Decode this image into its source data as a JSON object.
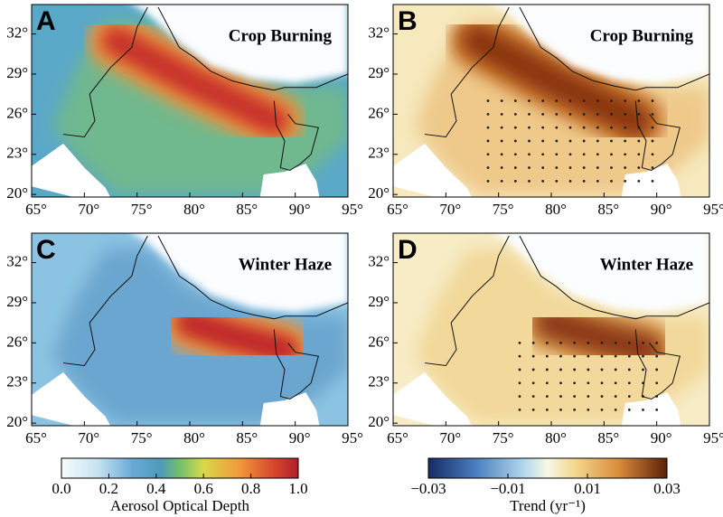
{
  "panels": [
    {
      "letter": "A",
      "title": "Crop Burning"
    },
    {
      "letter": "B",
      "title": "Crop Burning"
    },
    {
      "letter": "C",
      "title": "Winter Haze"
    },
    {
      "letter": "D",
      "title": "Winter Haze"
    }
  ],
  "longitude_labels": [
    "65°",
    "70°",
    "75°",
    "80°",
    "85°",
    "90°",
    "95°"
  ],
  "latitude_labels": [
    "32°",
    "29°",
    "26°",
    "23°",
    "20°"
  ],
  "colorbars": [
    {
      "tick_labels": [
        "0.0",
        "0.2",
        "0.4",
        "0.6",
        "0.8",
        "1.0"
      ],
      "label": "Aerosol Optical Depth"
    },
    {
      "tick_labels": [
        "−0.03",
        "−0.01",
        "0.01",
        "0.03"
      ],
      "label": "Trend (yr⁻¹)"
    }
  ]
}
